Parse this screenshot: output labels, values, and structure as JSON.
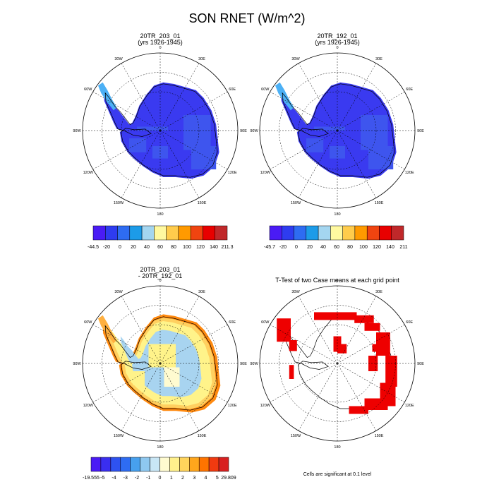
{
  "title": "SON RNET (W/m^2)",
  "colors": {
    "deep_blue": "#3a3af0",
    "mid_blue": "#4040f5",
    "land_blue2": "#3c5ef0",
    "diff_red": "#ee0000",
    "coast": "#000000"
  },
  "panels": [
    {
      "title_line1": "20TR_203_01",
      "title_line2": "(yrs 1926-1945)",
      "colorbar": {
        "colors": [
          "#4a1bf5",
          "#2e3cf0",
          "#2e6cf2",
          "#1c9be8",
          "#a4d6f0",
          "#fff9a0",
          "#ffcc4c",
          "#ff9a00",
          "#f04410",
          "#e80000",
          "#c0282a"
        ],
        "labels": [
          "-44.5",
          "-20",
          "0",
          "20",
          "40",
          "60",
          "80",
          "100",
          "120",
          "140",
          "211.3"
        ]
      }
    },
    {
      "title_line1": "20TR_192_01",
      "title_line2": "(yrs 1926-1945)",
      "colorbar": {
        "colors": [
          "#4a1bf5",
          "#2e3cf0",
          "#2e6cf2",
          "#1c9be8",
          "#a4d6f0",
          "#fff9a0",
          "#ffcc4c",
          "#ff9a00",
          "#f04410",
          "#e80000",
          "#c0282a"
        ],
        "labels": [
          "-45.7",
          "-20",
          "0",
          "20",
          "40",
          "60",
          "80",
          "100",
          "120",
          "140",
          "211"
        ]
      }
    },
    {
      "title_line1": "20TR_203_01",
      "title_line2": "- 20TR_192_01",
      "colorbar": {
        "colors": [
          "#4a1bf5",
          "#3a2ef0",
          "#2e52f0",
          "#2e6cf2",
          "#47a0ee",
          "#8ec8f0",
          "#c8e6f5",
          "#fffbd0",
          "#fff08c",
          "#ffd45c",
          "#ffa61c",
          "#ff7400",
          "#f03a10",
          "#d82020"
        ],
        "labels": [
          "-19.555",
          "-5",
          "-4",
          "-3",
          "-2",
          "-1",
          "0",
          "1",
          "2",
          "3",
          "4",
          "5",
          "29.809"
        ]
      }
    },
    {
      "title_line1": "T-Test of two Case means at each grid point",
      "footnote": "Cells are significant at 0.1 level"
    }
  ],
  "map_labels": {
    "lon": [
      "0",
      "30E",
      "60E",
      "90E",
      "120E",
      "150E",
      "180",
      "150W",
      "120W",
      "90W",
      "60W",
      "30W"
    ]
  }
}
